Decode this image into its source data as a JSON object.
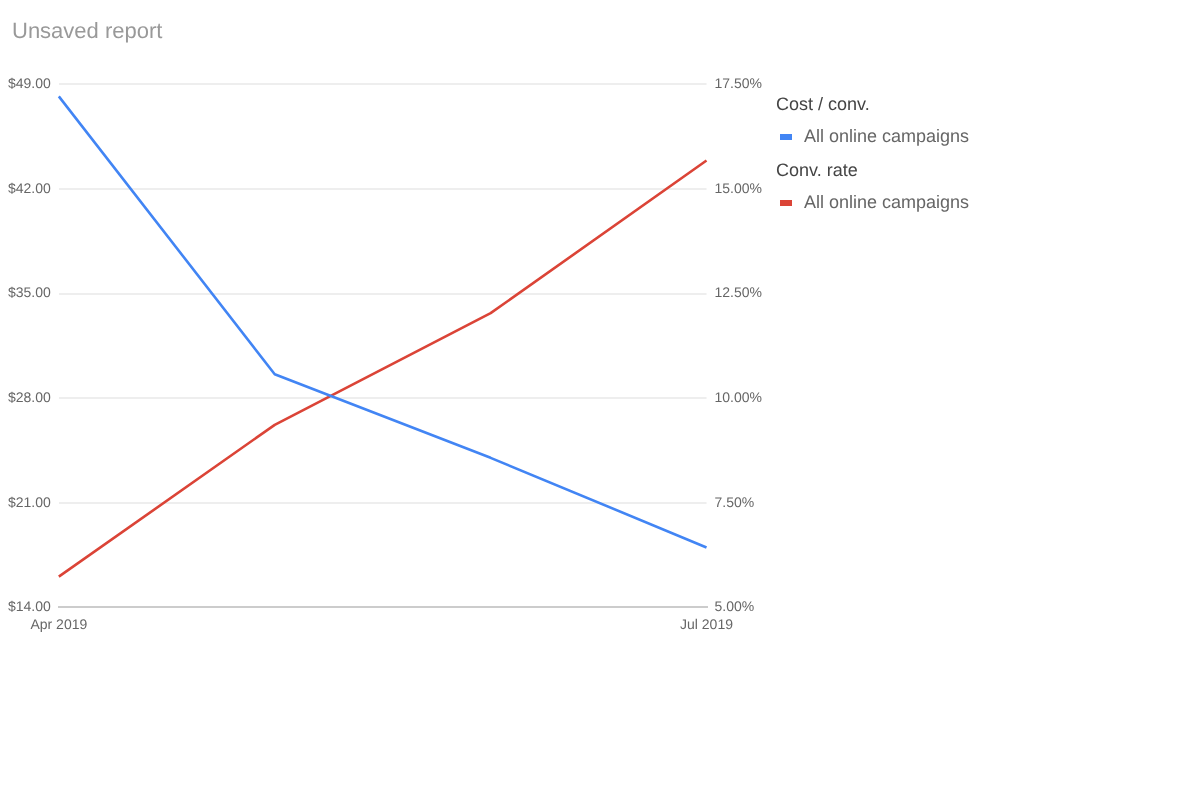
{
  "chart_data": {
    "type": "line",
    "title": "Unsaved report",
    "annotations": [
      "Cost / conv.",
      "Conv. rate"
    ],
    "categories": [
      "Apr 2019",
      null,
      null,
      "Jul 2019"
    ],
    "series": [
      {
        "name": "All online campaigns",
        "color": "#4285f4",
        "values": [
          48.2,
          29.6,
          24.0,
          18.0
        ]
      },
      {
        "name": "All online campaigns",
        "color": "#db4437",
        "values": [
          5.73,
          9.36,
          12.03,
          15.68
        ],
        "axis": "y2"
      }
    ],
    "ylim": [
      14,
      49
    ],
    "yticks": [
      {
        "value": 14,
        "label": "$14.00"
      },
      {
        "value": 21,
        "label": "$21.00"
      },
      {
        "value": 28,
        "label": "$28.00"
      },
      {
        "value": 35,
        "label": "$35.00"
      },
      {
        "value": 42,
        "label": "$42.00"
      },
      {
        "value": 49,
        "label": "$49.00"
      }
    ],
    "y2lim": [
      5,
      17.5
    ],
    "y2ticks": [
      {
        "value": 5,
        "label": "5.00%"
      },
      {
        "value": 7.5,
        "label": "7.50%"
      },
      {
        "value": 10,
        "label": "10.00%"
      },
      {
        "value": 12.5,
        "label": "12.50%"
      },
      {
        "value": 15,
        "label": "15.00%"
      },
      {
        "value": 17.5,
        "label": "17.50%"
      }
    ],
    "grid": "y",
    "legend": "right",
    "marker": "none",
    "line_style": "solid"
  }
}
